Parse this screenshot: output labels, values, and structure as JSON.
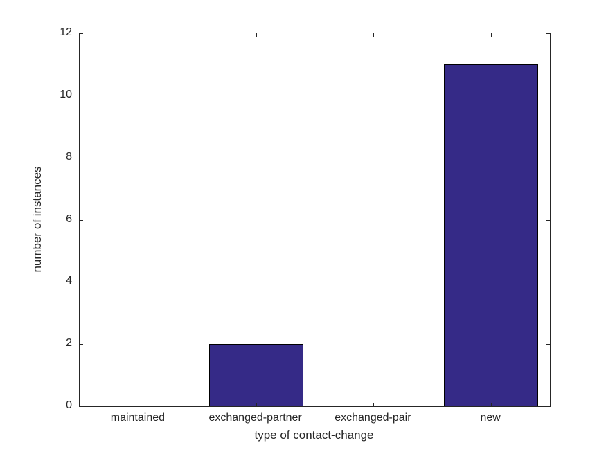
{
  "chart_data": {
    "type": "bar",
    "title": "",
    "xlabel": "type of contact-change",
    "ylabel": "number of instances",
    "categories": [
      "maintained",
      "exchanged-partner",
      "exchanged-pair",
      "new"
    ],
    "values": [
      0,
      2,
      0,
      11
    ],
    "ylim": [
      0,
      12
    ],
    "yticks": [
      0,
      2,
      4,
      6,
      8,
      10,
      12
    ],
    "bar_width_fraction": 0.8,
    "bar_color": "#352A87",
    "bar_edge_color": "#000000",
    "axis_color": "#262626",
    "background_color": "#ffffff",
    "grid": false,
    "legend": null
  }
}
